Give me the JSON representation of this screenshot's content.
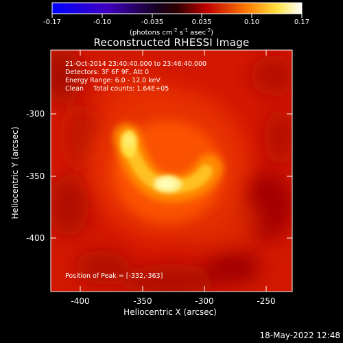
{
  "colorbar": {
    "ticks": [
      "-0.17",
      "-0.10",
      "-0.035",
      "0.035",
      "0.10",
      "0.17"
    ],
    "units_prefix": "(photons cm",
    "units_exp1": "-2",
    "units_mid1": " s",
    "units_exp2": "-1",
    "units_mid2": " asec",
    "units_exp3": "-2",
    "units_suffix": ")",
    "colors": [
      "#0000ff",
      "#5b00b5",
      "#000000",
      "#c00000",
      "#ff8000",
      "#ffff40",
      "#ffffff"
    ]
  },
  "title": "Reconstructed RHESSI Image",
  "annotations": {
    "line1": "21-Oct-2014 23:40:40.000 to 23:46:40.000",
    "line2": "Detectors: 3F 6F 9F, Att 0",
    "line3": "Energy Range: 6.0 - 12.0 keV",
    "line4_a": "Clean",
    "line4_b": "Total counts: 1.64E+05",
    "peak": "Position of Peak = [-332,-363]"
  },
  "axes": {
    "xlabel": "Heliocentric X (arcsec)",
    "ylabel": "Heliocentric Y (arcsec)",
    "xticks": [
      "-400",
      "-350",
      "-300",
      "-250"
    ],
    "yticks": [
      "-300",
      "-350",
      "-400"
    ]
  },
  "timestamp": "18-May-2022 12:48"
}
